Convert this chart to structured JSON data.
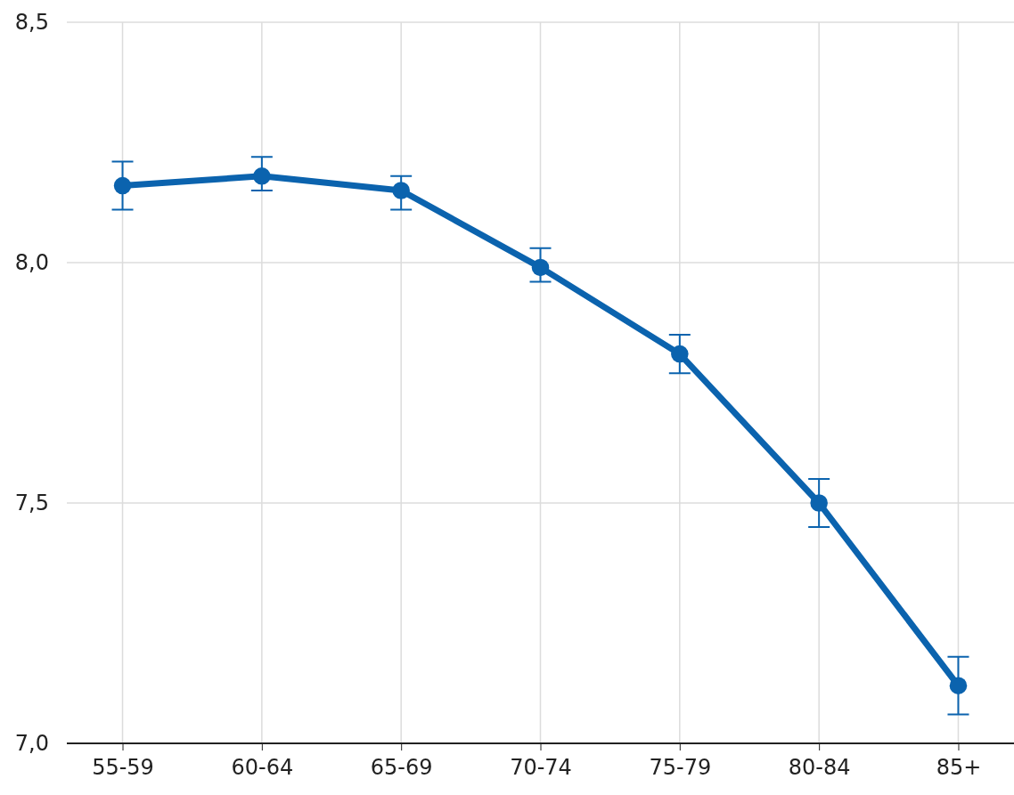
{
  "chart_data": {
    "type": "line",
    "categories": [
      "55-59",
      "60-64",
      "65-69",
      "70-74",
      "75-79",
      "80-84",
      "85+"
    ],
    "values": [
      8.16,
      8.18,
      8.15,
      7.99,
      7.81,
      7.5,
      7.12
    ],
    "errors": [
      [
        8.11,
        8.21
      ],
      [
        8.15,
        8.22
      ],
      [
        8.11,
        8.18
      ],
      [
        7.96,
        8.03
      ],
      [
        7.77,
        7.85
      ],
      [
        7.45,
        7.55
      ],
      [
        7.06,
        7.18
      ]
    ],
    "color": "#0b63ae",
    "ylim": [
      7.0,
      8.5
    ],
    "yticks": [
      {
        "value": 7.0,
        "label": "7,0"
      },
      {
        "value": 7.5,
        "label": "7,5"
      },
      {
        "value": 8.0,
        "label": "8,0"
      },
      {
        "value": 8.5,
        "label": "8,5"
      }
    ],
    "grid": true,
    "marker": "circle",
    "line_style": "solid"
  }
}
